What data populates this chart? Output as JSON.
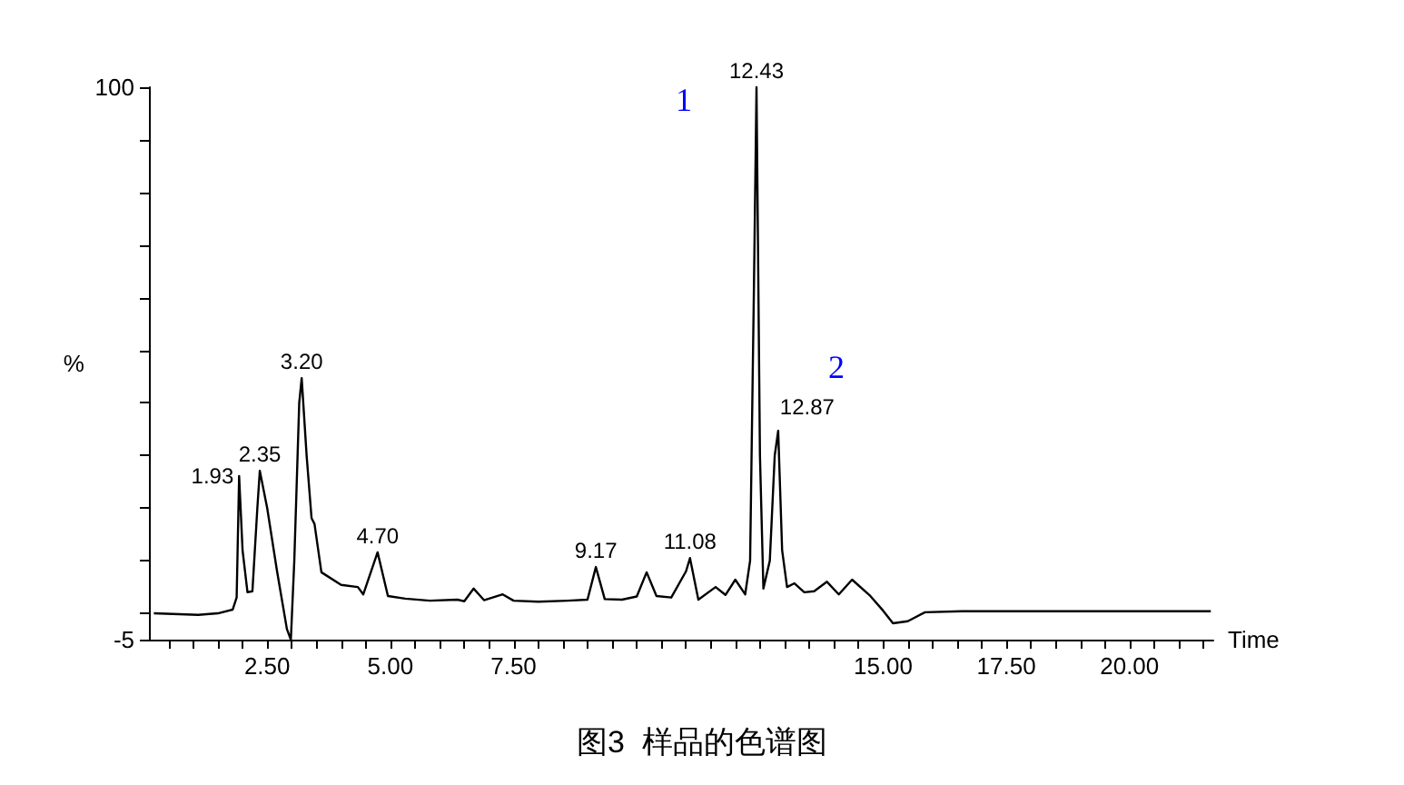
{
  "chart_data": {
    "type": "line",
    "title": "图3  样品的色谱图",
    "xlabel": "Time",
    "ylabel": "%",
    "grid": false,
    "marker": "none",
    "line_style": "solid",
    "color": "#000000",
    "x": [
      0.2,
      1.1,
      1.5,
      1.8,
      1.88,
      1.93,
      2.0,
      2.1,
      2.2,
      2.3,
      2.35,
      2.5,
      2.7,
      2.9,
      2.98,
      3.05,
      3.15,
      3.2,
      3.3,
      3.4,
      3.46,
      3.6,
      4.0,
      4.34,
      4.45,
      4.74,
      4.95,
      5.3,
      5.8,
      6.36,
      6.5,
      6.69,
      6.9,
      7.28,
      7.5,
      8.0,
      8.6,
      9.0,
      9.17,
      9.35,
      9.7,
      10.0,
      10.2,
      10.4,
      10.7,
      11.0,
      11.08,
      11.25,
      11.6,
      11.8,
      12.0,
      12.2,
      12.3,
      12.38,
      12.43,
      12.5,
      12.57,
      12.7,
      12.8,
      12.87,
      12.95,
      13.05,
      13.2,
      13.4,
      13.6,
      13.86,
      14.1,
      14.37,
      14.74,
      15.0,
      15.2,
      15.5,
      15.85,
      16.6,
      18.0,
      20.0,
      21.65
    ],
    "values": [
      0,
      -0.3,
      0,
      0.7,
      3,
      26.1,
      12,
      4,
      4.2,
      20,
      27.1,
      20,
      8,
      -3,
      -5,
      10,
      40,
      44.7,
      30,
      18.1,
      17,
      7.8,
      5.4,
      5,
      3.6,
      11.6,
      3.3,
      2.8,
      2.4,
      2.6,
      2.3,
      4.7,
      2.5,
      3.6,
      2.4,
      2.2,
      2.4,
      2.6,
      8.8,
      2.7,
      2.6,
      3.2,
      7.8,
      3.3,
      3.0,
      8,
      10.5,
      2.6,
      5,
      3.5,
      6.4,
      3.6,
      10,
      63.4,
      100,
      30,
      4.7,
      10,
      30,
      34.7,
      12,
      5,
      5.7,
      4,
      4.2,
      6,
      3.6,
      6.4,
      3.3,
      0.5,
      -1.9,
      -1.5,
      0.2,
      0.4,
      0.4,
      0.4,
      0.4
    ],
    "xlim": [
      0.1,
      21.7
    ],
    "xticks": [
      {
        "value": 0.5,
        "label": null
      },
      {
        "value": 1,
        "label": null
      },
      {
        "value": 1.5,
        "label": null
      },
      {
        "value": 2,
        "label": null
      },
      {
        "value": 2.5,
        "label": "2.50"
      },
      {
        "value": 3,
        "label": null
      },
      {
        "value": 3.5,
        "label": null
      },
      {
        "value": 4,
        "label": null
      },
      {
        "value": 4.5,
        "label": null
      },
      {
        "value": 5,
        "label": "5.00"
      },
      {
        "value": 5.5,
        "label": null
      },
      {
        "value": 6,
        "label": null
      },
      {
        "value": 6.5,
        "label": null
      },
      {
        "value": 7,
        "label": null
      },
      {
        "value": 7.5,
        "label": "7.50"
      },
      {
        "value": 8,
        "label": null
      },
      {
        "value": 8.5,
        "label": null
      },
      {
        "value": 9,
        "label": null
      },
      {
        "value": 9.5,
        "label": null
      },
      {
        "value": 10,
        "label": null
      },
      {
        "value": 10.5,
        "label": null
      },
      {
        "value": 11,
        "label": null
      },
      {
        "value": 11.5,
        "label": null
      },
      {
        "value": 12,
        "label": null
      },
      {
        "value": 12.5,
        "label": null
      },
      {
        "value": 13,
        "label": null
      },
      {
        "value": 13.5,
        "label": null
      },
      {
        "value": 14,
        "label": null
      },
      {
        "value": 14.5,
        "label": null
      },
      {
        "value": 15,
        "label": "15.00"
      },
      {
        "value": 15.5,
        "label": null
      },
      {
        "value": 16,
        "label": null
      },
      {
        "value": 16.5,
        "label": null
      },
      {
        "value": 17,
        "label": null
      },
      {
        "value": 17.5,
        "label": "17.50"
      },
      {
        "value": 18,
        "label": null
      },
      {
        "value": 18.5,
        "label": null
      },
      {
        "value": 19,
        "label": null
      },
      {
        "value": 19.5,
        "label": null
      },
      {
        "value": 20,
        "label": "20.00"
      },
      {
        "value": 20.5,
        "label": null
      },
      {
        "value": 21,
        "label": null
      },
      {
        "value": 21.5,
        "label": null
      }
    ],
    "ylim": [
      -5,
      100
    ],
    "yticks": [
      -5,
      {
        "value": 0,
        "label": null
      },
      {
        "value": 10,
        "label": null
      },
      {
        "value": 20,
        "label": null
      },
      {
        "value": 30,
        "label": null
      },
      {
        "value": 40,
        "label": null
      },
      {
        "value": 50,
        "label": null
      },
      {
        "value": 60,
        "label": null
      },
      {
        "value": 70,
        "label": null
      },
      {
        "value": 80,
        "label": null
      },
      {
        "value": 90,
        "label": null
      },
      100
    ],
    "annotations": [
      {
        "text": "1.93",
        "x": 1.93,
        "y": 26.1
      },
      {
        "text": "2.35",
        "x": 2.35,
        "y": 27.1
      },
      {
        "text": "3.20",
        "x": 3.2,
        "y": 44.7
      },
      {
        "text": "4.70",
        "x": 4.74,
        "y": 11.6
      },
      {
        "text": "9.17",
        "x": 9.17,
        "y": 8.8
      },
      {
        "text": "11.08",
        "x": 11.08,
        "y": 10.5
      },
      {
        "text": "12.43",
        "x": 12.43,
        "y": 100
      },
      {
        "text": "12.87",
        "x": 12.87,
        "y": 34.7
      },
      "1",
      "2"
    ]
  }
}
